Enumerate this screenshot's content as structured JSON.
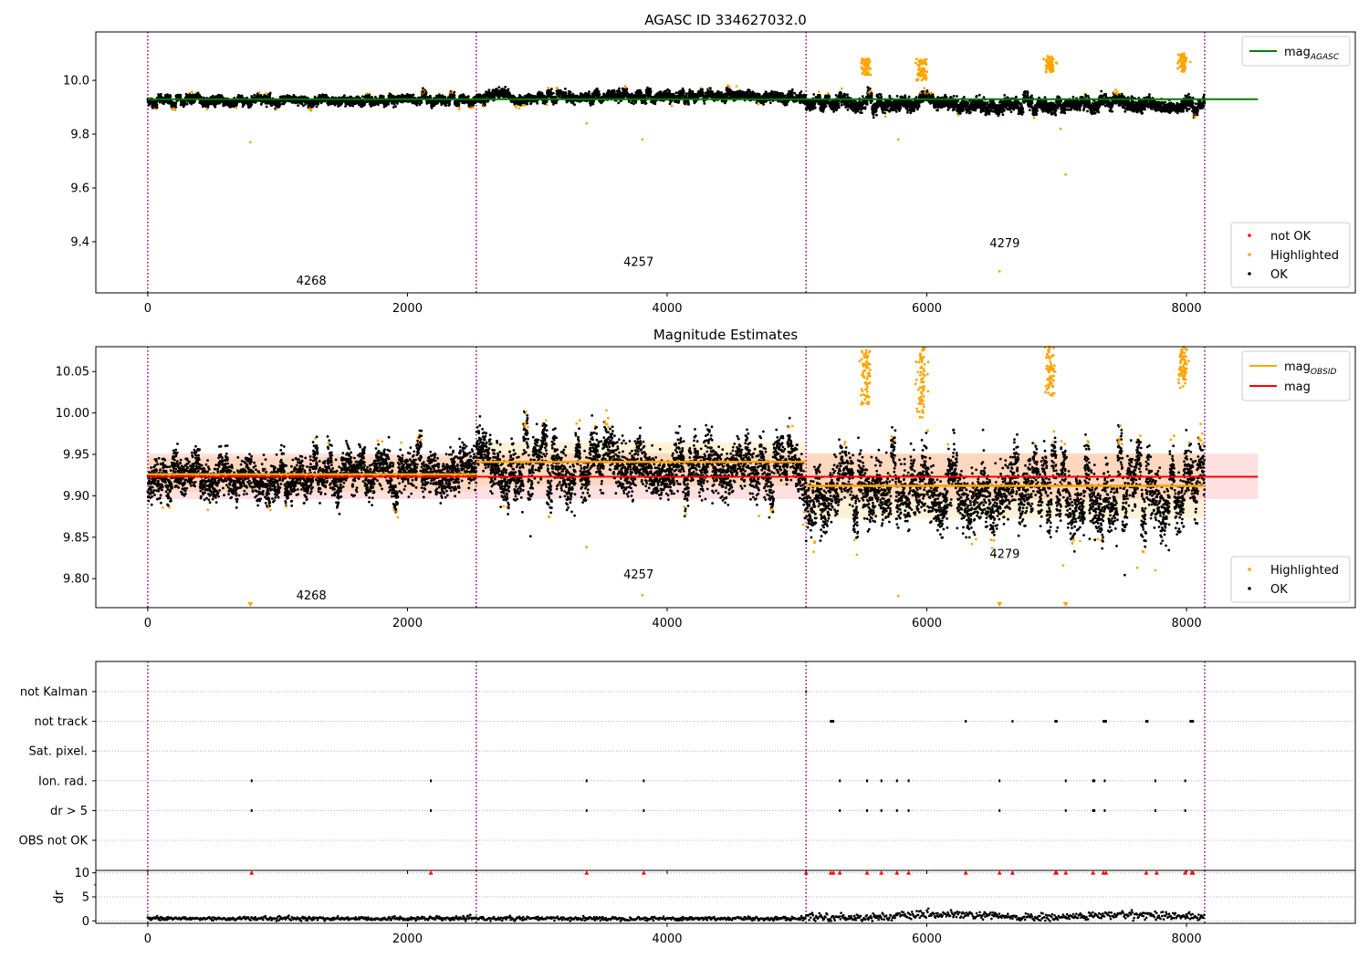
{
  "colors": {
    "ok": "#000000",
    "highlighted": "#ffa500",
    "not_ok": "#ff0000",
    "agasc_line": "#008000",
    "mag_line": "#ff0000",
    "mag_obsid_line": "#ffa500",
    "obsid_divider": "#800080",
    "grid": "#b0b0b0"
  },
  "chart_data": [
    {
      "type": "scatter",
      "title": "AGASC ID 334627032.0",
      "xlim": [
        -400,
        9300
      ],
      "ylim": [
        9.21,
        10.18
      ],
      "xticks": [
        0,
        2000,
        4000,
        6000,
        8000
      ],
      "yticks": [
        9.4,
        9.6,
        9.8,
        10.0
      ],
      "ytick_labels": [
        "9.4",
        "9.6",
        "9.8",
        "10.0"
      ],
      "obsid_dividers": [
        0,
        2530,
        5070,
        8140
      ],
      "obsid_labels": [
        {
          "text": "4268",
          "x": 1260,
          "y": 9.24
        },
        {
          "text": "4257",
          "x": 3780,
          "y": 9.31
        },
        {
          "text": "4279",
          "x": 6600,
          "y": 9.38
        }
      ],
      "lines": [
        {
          "name": "mag",
          "subscript": "AGASC",
          "y": 9.93,
          "x": [
            0,
            8550
          ],
          "color": "#008000"
        }
      ],
      "legend_lines": [
        {
          "label": "mag",
          "sub": "AGASC",
          "color": "#008000"
        }
      ],
      "legend_points": [
        {
          "label": "not OK",
          "color": "#ff0000"
        },
        {
          "label": "Highlighted",
          "color": "#ffa500"
        },
        {
          "label": "OK",
          "color": "#000000"
        }
      ],
      "segments": [
        {
          "x0": 0,
          "x1": 2530,
          "y": 9.925,
          "spread": 0.013
        },
        {
          "x0": 2530,
          "x1": 5070,
          "y": 9.94,
          "spread": 0.015
        },
        {
          "x0": 5070,
          "x1": 8140,
          "y": 9.91,
          "spread": 0.02
        }
      ],
      "highlight_clusters": [
        {
          "x": 5530,
          "y0": 10.02,
          "y1": 10.08
        },
        {
          "x": 5960,
          "y0": 10.0,
          "y1": 10.08
        },
        {
          "x": 6950,
          "y0": 10.03,
          "y1": 10.09
        },
        {
          "x": 7970,
          "y0": 10.03,
          "y1": 10.1
        }
      ],
      "outliers": [
        {
          "x": 790,
          "y": 9.77
        },
        {
          "x": 3380,
          "y": 9.84
        },
        {
          "x": 3810,
          "y": 9.78
        },
        {
          "x": 5780,
          "y": 9.78
        },
        {
          "x": 6560,
          "y": 9.29
        },
        {
          "x": 7070,
          "y": 9.65
        },
        {
          "x": 7030,
          "y": 9.82
        }
      ]
    },
    {
      "type": "scatter",
      "title": "Magnitude Estimates",
      "xlim": [
        -400,
        9300
      ],
      "ylim": [
        9.765,
        10.08
      ],
      "xticks": [
        0,
        2000,
        4000,
        6000,
        8000
      ],
      "yticks": [
        9.8,
        9.85,
        9.9,
        9.95,
        10.0,
        10.05
      ],
      "ytick_labels": [
        "9.80",
        "9.85",
        "9.90",
        "9.95",
        "10.00",
        "10.05"
      ],
      "obsid_dividers": [
        0,
        2530,
        5070,
        8140
      ],
      "obsid_labels": [
        {
          "text": "4268",
          "x": 1260,
          "y": 9.775
        },
        {
          "text": "4257",
          "x": 3780,
          "y": 9.8
        },
        {
          "text": "4279",
          "x": 6600,
          "y": 9.825
        }
      ],
      "lines": [
        {
          "name": "mag",
          "y": 9.923,
          "x": [
            0,
            8550
          ],
          "color": "#ff0000",
          "band": [
            9.896,
            9.951
          ]
        }
      ],
      "obsid_lines": [
        {
          "x0": 0,
          "x1": 2530,
          "y": 9.926,
          "band": [
            9.905,
            9.947
          ]
        },
        {
          "x0": 2530,
          "x1": 5070,
          "y": 9.941,
          "band": [
            9.912,
            9.965
          ]
        },
        {
          "x0": 5070,
          "x1": 8140,
          "y": 9.912,
          "band": [
            9.873,
            9.951
          ]
        }
      ],
      "legend_lines": [
        {
          "label": "mag",
          "sub": "OBSID",
          "color": "#ffa500"
        },
        {
          "label": "mag",
          "sub": "",
          "color": "#ff0000"
        }
      ],
      "legend_points": [
        {
          "label": "Highlighted",
          "color": "#ffa500"
        },
        {
          "label": "OK",
          "color": "#000000"
        }
      ],
      "segments": [
        {
          "x0": 0,
          "x1": 2530,
          "y": 9.925,
          "spread": 0.02
        },
        {
          "x0": 2530,
          "x1": 5070,
          "y": 9.935,
          "spread": 0.025
        },
        {
          "x0": 5070,
          "x1": 8140,
          "y": 9.905,
          "spread": 0.03
        }
      ],
      "highlight_clusters": [
        {
          "x": 5530,
          "y0": 10.01,
          "y1": 10.08
        },
        {
          "x": 5960,
          "y0": 9.99,
          "y1": 10.08
        },
        {
          "x": 6950,
          "y0": 10.02,
          "y1": 10.08
        },
        {
          "x": 7970,
          "y0": 10.03,
          "y1": 10.08
        }
      ],
      "outliers": [
        {
          "x": 3380,
          "y": 9.838
        },
        {
          "x": 3810,
          "y": 9.78
        },
        {
          "x": 5780,
          "y": 9.779
        },
        {
          "x": 7050,
          "y": 9.816
        },
        {
          "x": 7620,
          "y": 9.813
        },
        {
          "x": 7760,
          "y": 9.81
        }
      ],
      "clipped_markers": [
        {
          "x": 790
        },
        {
          "x": 6560
        },
        {
          "x": 7070
        }
      ]
    },
    {
      "type": "scatter",
      "title": "",
      "xlim": [
        -400,
        9300
      ],
      "xticks": [
        0,
        2000,
        4000,
        6000,
        8000
      ],
      "obsid_dividers": [
        0,
        2530,
        5070,
        8140
      ],
      "flag_rows": [
        "not Kalman",
        "not track",
        "Sat. pixel.",
        "Ion. rad.",
        "dr > 5",
        "OBS not OK"
      ],
      "flags": {
        "not Kalman": [
          5070
        ],
        "not track": [
          5260,
          5270,
          5280,
          6300,
          6660,
          6990,
          7000,
          7360,
          7370,
          7380,
          7690,
          7700,
          8030,
          8040,
          8050
        ],
        "Sat. pixel.": [],
        "Ion. rad.": [
          800,
          2180,
          3380,
          3820,
          5330,
          5540,
          5650,
          5770,
          5860,
          6560,
          7070,
          7280,
          7290,
          7370,
          7760,
          7990
        ],
        "dr > 5": [
          800,
          2180,
          3380,
          3820,
          5330,
          5540,
          5650,
          5770,
          5860,
          6560,
          7070,
          7280,
          7290,
          7370,
          7760,
          7990
        ],
        "OBS not OK": []
      }
    },
    {
      "type": "scatter",
      "title": "",
      "xlim": [
        -400,
        9300
      ],
      "ylim": [
        -0.5,
        10.5
      ],
      "xticks": [
        0,
        2000,
        4000,
        6000,
        8000
      ],
      "xtick_labels": [
        "0",
        "2000",
        "4000",
        "6000",
        "8000"
      ],
      "yticks": [
        0,
        5,
        10
      ],
      "ytick_labels": [
        "0",
        "5",
        "10"
      ],
      "ylabel": "dr",
      "obsid_dividers": [
        0,
        2530,
        5070,
        8140
      ],
      "clip_markers_x": [
        800,
        2180,
        3380,
        3820,
        5070,
        5260,
        5280,
        5330,
        5540,
        5650,
        5770,
        5860,
        6300,
        6560,
        6660,
        6990,
        7000,
        7070,
        7280,
        7360,
        7380,
        7690,
        7770,
        7990,
        8040,
        8050
      ]
    }
  ]
}
